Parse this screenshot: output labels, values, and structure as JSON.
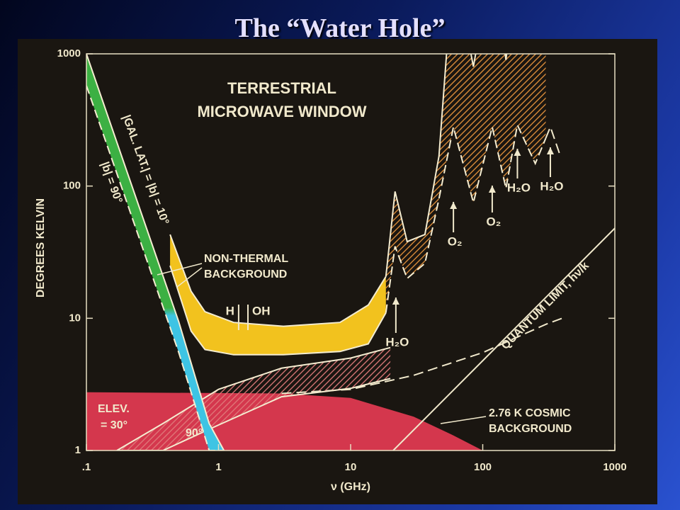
{
  "slide_title": "The “Water Hole”",
  "chart_data": {
    "type": "line",
    "title_lines": [
      "TERRESTRIAL",
      "MICROWAVE WINDOW"
    ],
    "xlabel": "ν (GHz)",
    "ylabel": "DEGREES KELVIN",
    "xscale": "log",
    "yscale": "log",
    "xlim": [
      0.1,
      1000
    ],
    "xticks": [
      {
        "value": 0.1,
        "label": ".1"
      },
      1,
      10,
      100,
      1000
    ],
    "ylim": [
      1,
      1000
    ],
    "yticks": [
      1,
      10,
      100,
      1000
    ],
    "areas": [
      {
        "color": "#d4374d",
        "x": [
          0.1,
          3,
          10,
          30,
          60,
          100
        ],
        "values": [
          2.76,
          2.7,
          2.5,
          1.8,
          1.3,
          1
        ]
      }
    ],
    "bands": [
      {
        "color": "#e07a7a",
        "hatch": true,
        "lower_dashed": false,
        "x": [
          0.17,
          0.38,
          1,
          3,
          10,
          20
        ],
        "upper": [
          1,
          1.6,
          2.9,
          4.2,
          5.0,
          6.0
        ],
        "lower": [
          1,
          1,
          1.56,
          2.55,
          2.95,
          3.5
        ]
      },
      {
        "colors": [
          "#3cb043",
          "#3ec4e4"
        ],
        "hatch": false,
        "lower_dashed": true,
        "x": [
          0.1,
          0.2,
          0.5,
          0.85,
          1.1
        ],
        "upper": [
          1000,
          134,
          9.4,
          1.6,
          1
        ],
        "lower": [
          575,
          78,
          5.5,
          1,
          1
        ]
      },
      {
        "color": "#f2c21e",
        "hatch": false,
        "lower_dashed": false,
        "x": [
          0.43,
          0.62,
          0.79,
          1.3,
          3.1,
          8.3,
          13.6,
          18.5
        ],
        "upper": [
          43,
          16,
          11.2,
          9.3,
          8.7,
          9.3,
          12.6,
          20.7
        ],
        "lower": [
          25,
          8,
          5.8,
          5.3,
          5.3,
          5.6,
          6.4,
          11
        ]
      },
      {
        "color": "#e8943c",
        "hatch": true,
        "lower_dashed": true,
        "x": [
          18.5,
          21.7,
          26.8,
          36.5,
          46.6,
          60,
          85,
          118,
          150,
          183,
          250,
          300
        ],
        "upper": [
          20.7,
          91,
          38,
          43,
          168,
          5000,
          800,
          5000,
          900,
          5000,
          1200,
          3000
        ],
        "lower": [
          11,
          35,
          20,
          26,
          80,
          280,
          75,
          280,
          96,
          290,
          148,
          230
        ]
      }
    ],
    "lines": [
      {
        "color": "#f1e9cc",
        "dashed": true,
        "x": [
          300,
          325,
          380
        ],
        "values": [
          230,
          280,
          178
        ]
      },
      {
        "color": "#f1e9cc",
        "dashed": true,
        "x": [
          3,
          10,
          30,
          100,
          300,
          400
        ],
        "values": [
          2.7,
          2.9,
          3.7,
          5.5,
          9,
          10
        ]
      },
      {
        "color": "#f1e9cc",
        "dashed": false,
        "x": [
          21,
          1000
        ],
        "values": [
          1,
          48
        ]
      }
    ],
    "markers": [
      {
        "label": "H",
        "x": 1.42
      },
      {
        "label": "OH",
        "x": 1.67
      }
    ],
    "spectral_lines": [
      {
        "label": "H₂O",
        "x": 22
      },
      {
        "label": "O₂",
        "x": 60
      },
      {
        "label": "O₂",
        "x": 118
      },
      {
        "label": "H₂O",
        "x": 183
      },
      {
        "label": "H₂O",
        "x": 325
      }
    ],
    "annotations": [
      "|GAL. LAT.| = |b| = 10°",
      "|b| = 90°",
      "NON-THERMAL",
      "BACKGROUND",
      "ELEV.",
      "= 30°",
      "90°",
      "QUANTUM LIMIT, hν/k",
      "2.76 K COSMIC",
      "BACKGROUND"
    ]
  }
}
